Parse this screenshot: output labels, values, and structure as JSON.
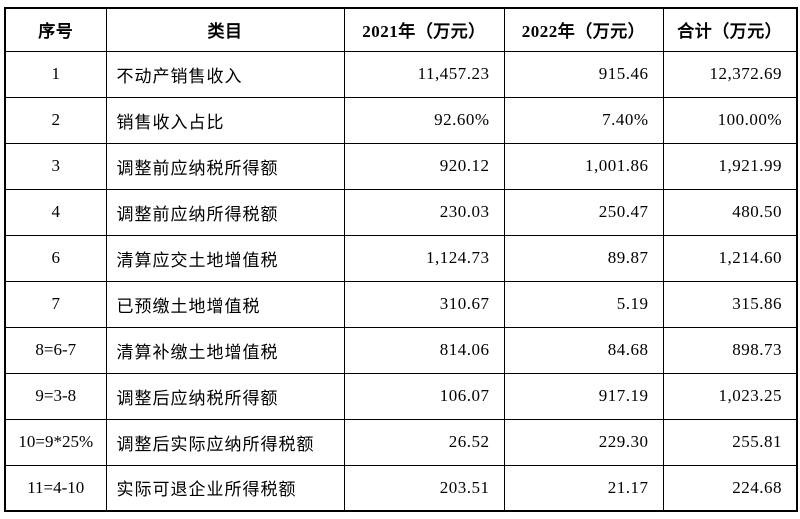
{
  "colors": {
    "background": "#ffffff",
    "border": "#000000",
    "text": "#000000"
  },
  "table": {
    "columns": [
      {
        "label": "序号"
      },
      {
        "label": "类目"
      },
      {
        "label": "2021年（万元）"
      },
      {
        "label": "2022年（万元）"
      },
      {
        "label": "合计（万元）"
      }
    ],
    "rows": [
      {
        "no": "1",
        "category": "不动产销售收入",
        "y2021": "11,457.23",
        "y2022": "915.46",
        "total": "12,372.69"
      },
      {
        "no": "2",
        "category": "销售收入占比",
        "y2021": "92.60%",
        "y2022": "7.40%",
        "total": "100.00%"
      },
      {
        "no": "3",
        "category": "调整前应纳税所得额",
        "y2021": "920.12",
        "y2022": "1,001.86",
        "total": "1,921.99"
      },
      {
        "no": "4",
        "category": "调整前应纳所得税额",
        "y2021": "230.03",
        "y2022": "250.47",
        "total": "480.50"
      },
      {
        "no": "6",
        "category": "清算应交土地增值税",
        "y2021": "1,124.73",
        "y2022": "89.87",
        "total": "1,214.60"
      },
      {
        "no": "7",
        "category": "已预缴土地增值税",
        "y2021": "310.67",
        "y2022": "5.19",
        "total": "315.86"
      },
      {
        "no": "8=6-7",
        "category": "清算补缴土地增值税",
        "y2021": "814.06",
        "y2022": "84.68",
        "total": "898.73"
      },
      {
        "no": "9=3-8",
        "category": "调整后应纳税所得额",
        "y2021": "106.07",
        "y2022": "917.19",
        "total": "1,023.25"
      },
      {
        "no": "10=9*25%",
        "category": "调整后实际应纳所得税额",
        "y2021": "26.52",
        "y2022": "229.30",
        "total": "255.81"
      },
      {
        "no": "11=4-10",
        "category": "实际可退企业所得税额",
        "y2021": "203.51",
        "y2022": "21.17",
        "total": "224.68"
      }
    ]
  }
}
